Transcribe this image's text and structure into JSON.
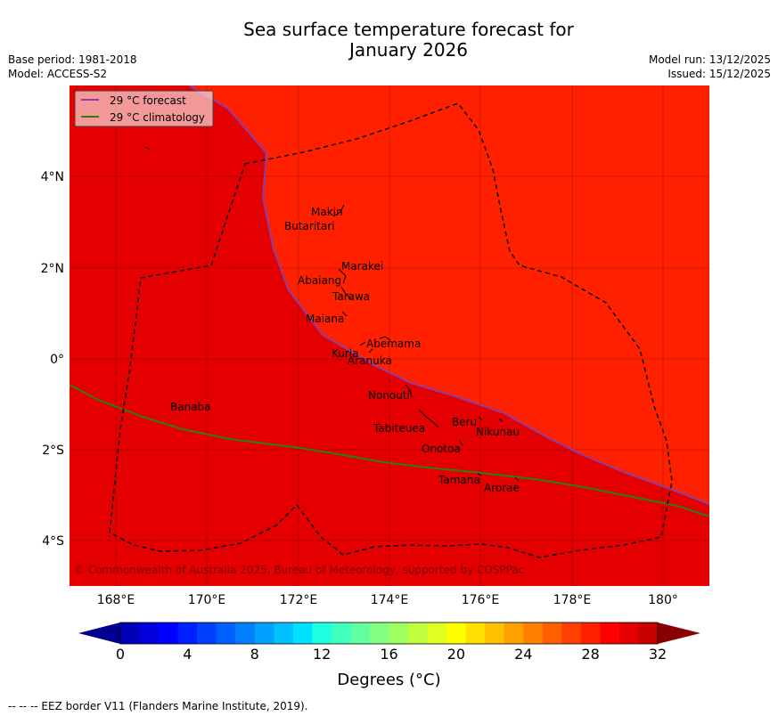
{
  "header": {
    "title_line1": "Sea surface temperature forecast for",
    "title_line2": "January 2026",
    "base_period": "Base period: 1981-2018",
    "model": "Model: ACCESS-S2",
    "model_run": "Model run: 13/12/2025",
    "issued": "Issued: 15/12/2025"
  },
  "map": {
    "lon_ticks": [
      "168°E",
      "170°E",
      "172°E",
      "174°E",
      "176°E",
      "178°E",
      "180°"
    ],
    "lat_ticks": [
      "4°N",
      "2°N",
      "0°",
      "2°S",
      "4°S"
    ],
    "islands": [
      "Makin",
      "Butaritari",
      "Marakei",
      "Abaiang",
      "Tarawa",
      "Maiana",
      "Abemama",
      "Kuria",
      "Aranuka",
      "Banaba",
      "Nonouti",
      "Beru",
      "Tabiteuea",
      "Nikunau",
      "Onotoa",
      "Tamana",
      "Arorae"
    ],
    "copyright": "© Commonwealth of Australia 2025, Bureau of Meteorology, supported by COSPPac",
    "legend": {
      "forecast": "29 °C  forecast",
      "climatology": "29 °C  climatology"
    },
    "colors": {
      "warm_fill": "#ff2000",
      "hot_fill": "#e40000",
      "forecast_line": "#8a3fa8",
      "climatology_line": "#2e7d14"
    }
  },
  "colorbar": {
    "ticks": [
      "0",
      "4",
      "8",
      "12",
      "16",
      "20",
      "24",
      "28",
      "32"
    ],
    "title": "Degrees (°C)",
    "colors": [
      "#00008f",
      "#0000b6",
      "#0000db",
      "#0000ff",
      "#0020ff",
      "#0040ff",
      "#0060ff",
      "#0080ff",
      "#00a0ff",
      "#00c0ff",
      "#00e0ff",
      "#20ffdf",
      "#40ffbf",
      "#60ff9f",
      "#80ff80",
      "#a0ff60",
      "#c0ff40",
      "#e0ff20",
      "#ffff00",
      "#ffe000",
      "#ffc000",
      "#ffa000",
      "#ff8000",
      "#ff6000",
      "#ff4000",
      "#ff2000",
      "#ff0000",
      "#e40000",
      "#c80000",
      "#8a0000"
    ]
  },
  "footnote": "--  --  -- EEZ border V11 (Flanders Marine Institute, 2019)."
}
